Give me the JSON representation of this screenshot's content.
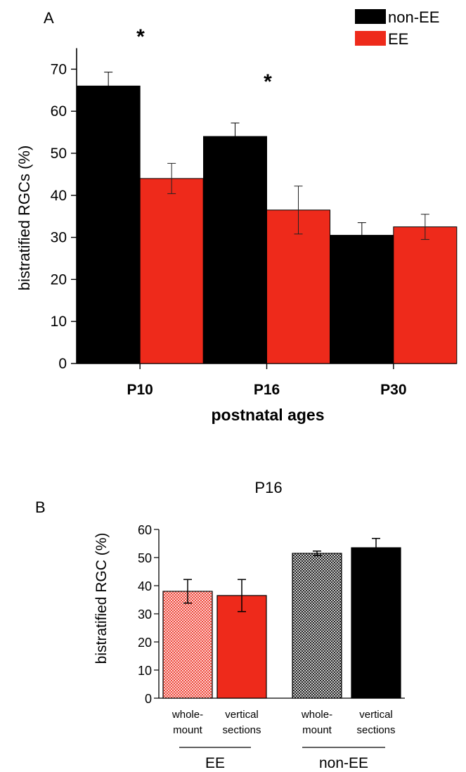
{
  "chart_data": [
    {
      "panel": "A",
      "type": "bar",
      "xlabel": "postnatal ages",
      "ylabel": "bistratified RGCs (%)",
      "ylim": [
        0,
        75
      ],
      "yticks": [
        "0",
        "10",
        "20",
        "30",
        "40",
        "50",
        "60",
        "70"
      ],
      "categories": [
        "P10",
        "P16",
        "P30"
      ],
      "series": [
        {
          "name": "non-EE",
          "color": "#000000",
          "values": [
            66,
            54,
            30.5
          ],
          "errors": [
            3.3,
            3.2,
            3.0
          ]
        },
        {
          "name": "EE",
          "color": "#ee2a1b",
          "values": [
            44,
            36.5,
            32.5
          ],
          "errors": [
            3.6,
            5.7,
            3.0
          ]
        }
      ],
      "annotations": [
        {
          "text": "*",
          "category": "P10"
        },
        {
          "text": "*",
          "category": "P16"
        }
      ],
      "legend": "top-right",
      "grid": false
    },
    {
      "panel": "B",
      "type": "bar",
      "title": "P16",
      "ylabel": "bistratified RGC (%)",
      "ylim": [
        0,
        60
      ],
      "yticks": [
        "0",
        "10",
        "20",
        "30",
        "40",
        "50",
        "60"
      ],
      "bars": [
        {
          "label_line1": "whole-",
          "label_line2": "mount",
          "group": "EE",
          "value": 38,
          "error": 4.2,
          "color": "#ee2a1b",
          "pattern": "hatched"
        },
        {
          "label_line1": "vertical",
          "label_line2": "sections",
          "group": "EE",
          "value": 36.5,
          "error": 5.7,
          "color": "#ee2a1b",
          "pattern": "solid"
        },
        {
          "label_line1": "whole-",
          "label_line2": "mount",
          "group": "non-EE",
          "value": 51.5,
          "error": 0.8,
          "color": "#000000",
          "pattern": "hatched"
        },
        {
          "label_line1": "vertical",
          "label_line2": "sections",
          "group": "non-EE",
          "value": 53.5,
          "error": 3.3,
          "color": "#000000",
          "pattern": "solid"
        }
      ],
      "groups": [
        "EE",
        "non-EE"
      ],
      "grid": false
    }
  ]
}
